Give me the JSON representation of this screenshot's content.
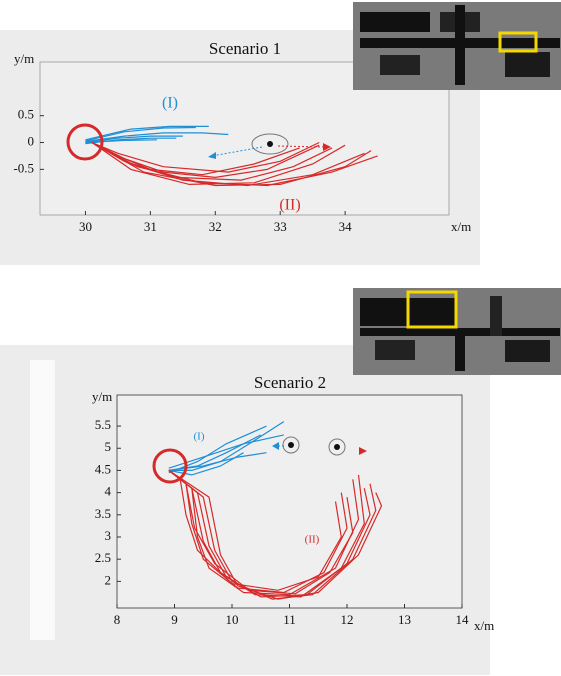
{
  "chart_data": [
    {
      "type": "line",
      "title": "Scenario 1",
      "x_label": "x/m",
      "y_label": "y/m",
      "annotations": [
        "(I)",
        "(II)"
      ],
      "xlim": [
        29.3,
        35.6
      ],
      "ylim": [
        -1.35,
        1.5
      ],
      "xticks": [
        30,
        31,
        32,
        33,
        34
      ],
      "yticks": [
        0.5,
        0,
        -0.5
      ],
      "series": [
        {
          "color": "#1f8fd6",
          "x": [
            30.0,
            30.6,
            31.2,
            31.8,
            32.2
          ],
          "values": [
            0.02,
            0.12,
            0.18,
            0.18,
            0.15
          ]
        },
        {
          "color": "#1f8fd6",
          "x": [
            30.0,
            30.5,
            31.0,
            31.5
          ],
          "values": [
            0.0,
            0.08,
            0.12,
            0.12
          ]
        },
        {
          "color": "#1f8fd6",
          "x": [
            30.0,
            30.6,
            31.2,
            31.7
          ],
          "values": [
            0.03,
            0.2,
            0.27,
            0.28
          ]
        },
        {
          "color": "#1f8fd6",
          "x": [
            30.0,
            30.5,
            31.0,
            31.4
          ],
          "values": [
            -0.02,
            0.05,
            0.08,
            0.08
          ]
        },
        {
          "color": "#1f8fd6",
          "x": [
            30.0,
            30.7,
            31.3,
            31.9
          ],
          "values": [
            0.05,
            0.25,
            0.3,
            0.3
          ]
        },
        {
          "color": "#1f8fd6",
          "x": [
            30.0,
            30.6,
            31.1
          ],
          "values": [
            0.0,
            0.04,
            0.05
          ]
        },
        {
          "color": "#d62a2a",
          "x": [
            30.1,
            30.6,
            31.2,
            32.0,
            32.8,
            33.6
          ],
          "values": [
            0,
            -0.3,
            -0.55,
            -0.65,
            -0.5,
            -0.05
          ]
        },
        {
          "color": "#d62a2a",
          "x": [
            30.1,
            30.7,
            31.5,
            32.5,
            33.5,
            34.3
          ],
          "values": [
            0,
            -0.4,
            -0.7,
            -0.8,
            -0.6,
            -0.2
          ]
        },
        {
          "color": "#d62a2a",
          "x": [
            30.1,
            30.5,
            31.0,
            31.8,
            32.6,
            33.3
          ],
          "values": [
            0,
            -0.25,
            -0.5,
            -0.6,
            -0.4,
            -0.1
          ]
        },
        {
          "color": "#d62a2a",
          "x": [
            30.1,
            30.8,
            31.8,
            32.8,
            33.8,
            34.5
          ],
          "values": [
            0,
            -0.45,
            -0.75,
            -0.8,
            -0.55,
            -0.25
          ]
        },
        {
          "color": "#d62a2a",
          "x": [
            30.1,
            30.6,
            31.4,
            32.4,
            33.2,
            33.8
          ],
          "values": [
            0,
            -0.35,
            -0.65,
            -0.7,
            -0.45,
            -0.1
          ]
        },
        {
          "color": "#d62a2a",
          "x": [
            30.1,
            30.7,
            31.6,
            32.6,
            33.5,
            34.0
          ],
          "values": [
            0,
            -0.5,
            -0.78,
            -0.75,
            -0.4,
            -0.05
          ]
        },
        {
          "color": "#d62a2a",
          "x": [
            30.1,
            30.5,
            31.2,
            32.2,
            33.0,
            33.6
          ],
          "values": [
            0,
            -0.2,
            -0.45,
            -0.55,
            -0.35,
            0.0
          ]
        },
        {
          "color": "#d62a2a",
          "x": [
            30.1,
            30.9,
            32.0,
            33.0,
            34.0,
            34.4
          ],
          "values": [
            0,
            -0.55,
            -0.8,
            -0.78,
            -0.45,
            -0.15
          ]
        }
      ]
    },
    {
      "type": "line",
      "title": "Scenario 2",
      "x_label": "x/m",
      "y_label": "y/m",
      "annotations": [
        "(I)",
        "(II)"
      ],
      "xlim": [
        8,
        14
      ],
      "ylim": [
        1.4,
        6.2
      ],
      "xticks": [
        8,
        9,
        10,
        11,
        12,
        13,
        14
      ],
      "yticks": [
        2,
        2.5,
        3,
        3.5,
        4,
        4.5,
        5,
        5.5
      ],
      "series": [
        {
          "color": "#1f8fd6",
          "x": [
            8.9,
            9.4,
            9.9,
            10.5
          ],
          "values": [
            4.5,
            4.6,
            4.9,
            5.3
          ]
        },
        {
          "color": "#1f8fd6",
          "x": [
            8.9,
            9.3,
            9.8,
            10.3,
            10.9
          ],
          "values": [
            4.5,
            4.5,
            4.7,
            5.1,
            5.6
          ]
        },
        {
          "color": "#1f8fd6",
          "x": [
            8.9,
            9.5,
            10.1,
            10.6
          ],
          "values": [
            4.5,
            4.6,
            4.8,
            4.9
          ]
        },
        {
          "color": "#1f8fd6",
          "x": [
            8.9,
            9.4,
            9.9,
            10.6
          ],
          "values": [
            4.45,
            4.7,
            5.1,
            5.5
          ]
        },
        {
          "color": "#1f8fd6",
          "x": [
            8.9,
            9.3,
            9.8,
            10.2
          ],
          "values": [
            4.5,
            4.4,
            4.6,
            4.9
          ]
        },
        {
          "color": "#1f8fd6",
          "x": [
            8.9,
            9.5,
            10.2,
            10.9
          ],
          "values": [
            4.55,
            4.8,
            5.1,
            5.3
          ]
        },
        {
          "color": "#d62a2a",
          "x": [
            8.9,
            9.3,
            9.4,
            9.6,
            10.2,
            11.0,
            11.8,
            12.2,
            12.1
          ],
          "values": [
            4.5,
            4.1,
            3.0,
            2.3,
            1.75,
            1.7,
            2.3,
            3.4,
            4.3
          ]
        },
        {
          "color": "#d62a2a",
          "x": [
            8.9,
            9.2,
            9.3,
            9.5,
            10.1,
            10.9,
            11.6,
            12.0,
            11.9
          ],
          "values": [
            4.5,
            4.2,
            3.3,
            2.5,
            1.85,
            1.75,
            2.2,
            3.2,
            4.0
          ]
        },
        {
          "color": "#d62a2a",
          "x": [
            8.9,
            9.4,
            9.6,
            9.9,
            10.5,
            11.3,
            12.0,
            12.4,
            12.3
          ],
          "values": [
            4.5,
            4.0,
            2.8,
            2.1,
            1.65,
            1.7,
            2.4,
            3.5,
            4.1
          ]
        },
        {
          "color": "#d62a2a",
          "x": [
            8.9,
            9.1,
            9.2,
            9.4,
            10.0,
            10.8,
            11.5,
            11.9,
            11.8
          ],
          "values": [
            4.5,
            4.3,
            3.5,
            2.7,
            1.95,
            1.8,
            2.1,
            3.0,
            3.8
          ]
        },
        {
          "color": "#d62a2a",
          "x": [
            8.9,
            9.5,
            9.7,
            10.0,
            10.7,
            11.4,
            12.1,
            12.5,
            12.4
          ],
          "values": [
            4.5,
            3.9,
            2.7,
            2.0,
            1.6,
            1.7,
            2.5,
            3.6,
            4.2
          ]
        },
        {
          "color": "#d62a2a",
          "x": [
            8.9,
            9.3,
            9.5,
            9.8,
            10.4,
            11.2,
            11.9,
            12.3,
            12.2
          ],
          "values": [
            4.5,
            4.1,
            2.9,
            2.2,
            1.7,
            1.65,
            2.3,
            3.3,
            4.4
          ]
        },
        {
          "color": "#d62a2a",
          "x": [
            8.9,
            9.2,
            9.35,
            9.7,
            10.3,
            11.1,
            11.7,
            12.1,
            12.0
          ],
          "values": [
            4.5,
            4.2,
            3.2,
            2.4,
            1.8,
            1.72,
            2.2,
            3.1,
            3.9
          ]
        },
        {
          "color": "#d62a2a",
          "x": [
            8.9,
            9.6,
            9.8,
            10.1,
            10.8,
            11.5,
            12.2,
            12.6,
            12.5
          ],
          "values": [
            4.5,
            3.9,
            2.6,
            1.9,
            1.6,
            1.75,
            2.6,
            3.7,
            4.0
          ]
        }
      ]
    }
  ]
}
